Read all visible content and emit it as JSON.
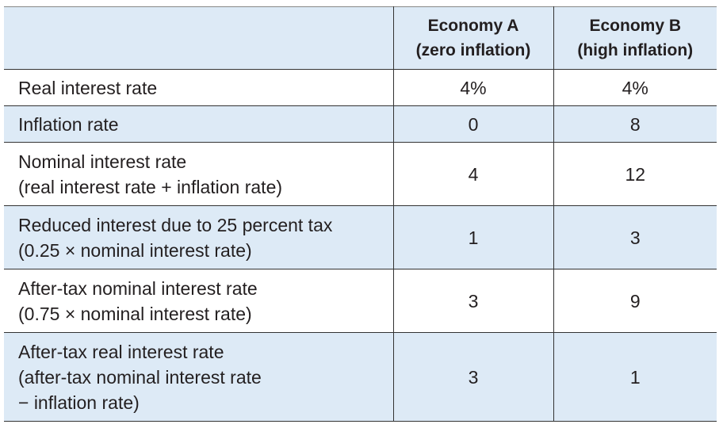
{
  "table": {
    "headers": [
      {
        "label": ""
      },
      {
        "title": "Economy A",
        "subtitle": "(zero inflation)"
      },
      {
        "title": "Economy B",
        "subtitle": "(high inflation)"
      }
    ],
    "rows": [
      {
        "label_lines": [
          "Real interest rate"
        ],
        "economy_a": "4%",
        "economy_b": "4%"
      },
      {
        "label_lines": [
          "Inflation rate"
        ],
        "economy_a": "0",
        "economy_b": "8"
      },
      {
        "label_lines": [
          "Nominal interest rate",
          "(real interest rate + inflation rate)"
        ],
        "economy_a": "4",
        "economy_b": "12"
      },
      {
        "label_lines": [
          "Reduced interest due to 25 percent tax",
          "(0.25 × nominal interest rate)"
        ],
        "economy_a": "1",
        "economy_b": "3"
      },
      {
        "label_lines": [
          "After-tax nominal interest rate",
          "(0.75 × nominal interest rate)"
        ],
        "economy_a": "3",
        "economy_b": "9"
      },
      {
        "label_lines": [
          "After-tax real interest rate",
          "(after-tax nominal interest rate",
          "− inflation rate)"
        ],
        "economy_a": "3",
        "economy_b": "1"
      }
    ]
  },
  "colors": {
    "shade": "#ddeaf6",
    "rule": "#333333"
  }
}
